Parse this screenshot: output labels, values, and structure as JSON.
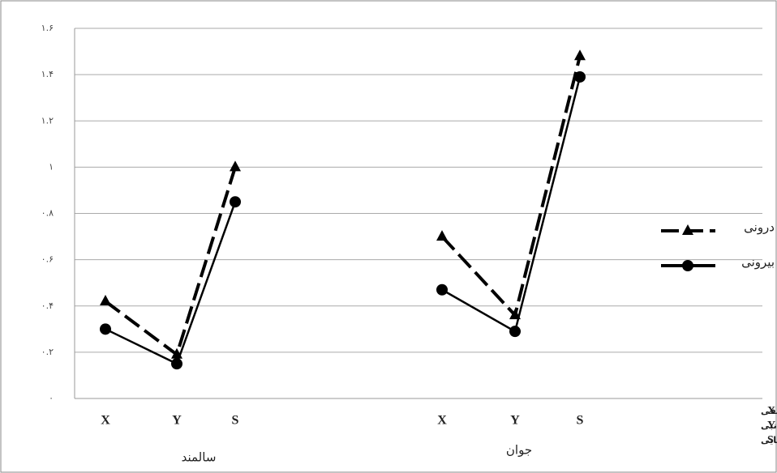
{
  "chart_data": {
    "type": "line",
    "categories": [
      "X",
      "Y",
      "S",
      null,
      "X",
      "Y",
      "S"
    ],
    "groups": [
      "سالمند",
      "جوان"
    ],
    "series": [
      {
        "name": "درونی",
        "color": "#000000",
        "line_style": "dashed",
        "marker": "triangle",
        "values": [
          0.42,
          0.19,
          1.0,
          null,
          0.7,
          0.36,
          1.48
        ]
      },
      {
        "name": "بیرونی",
        "color": "#000000",
        "line_style": "solid",
        "marker": "circle",
        "values": [
          0.3,
          0.15,
          0.85,
          null,
          0.47,
          0.29,
          1.39
        ]
      }
    ],
    "ylim": [
      0,
      1.6
    ],
    "yticks": [
      {
        "value": 0,
        "label": "۰"
      },
      {
        "value": 0.2,
        "label": "۰.۲"
      },
      {
        "value": 0.4,
        "label": "۰.۴"
      },
      {
        "value": 0.6,
        "label": "۰.۶"
      },
      {
        "value": 0.8,
        "label": "۰.۸"
      },
      {
        "value": 1,
        "label": "۱"
      },
      {
        "value": 1.2,
        "label": "۱.۲"
      },
      {
        "value": 1.4,
        "label": "۱.۴"
      },
      {
        "value": 1.6,
        "label": "۱.۶"
      }
    ],
    "grid": true,
    "notes": [
      {
        "key": "X",
        "text": "جابه‌جایی قدامی–خلفی"
      },
      {
        "key": "Y",
        "text": "جابه‌جایی میانی–جانبی"
      },
      {
        "key": "S",
        "text": "سرعت جابه‌جایی"
      }
    ]
  }
}
